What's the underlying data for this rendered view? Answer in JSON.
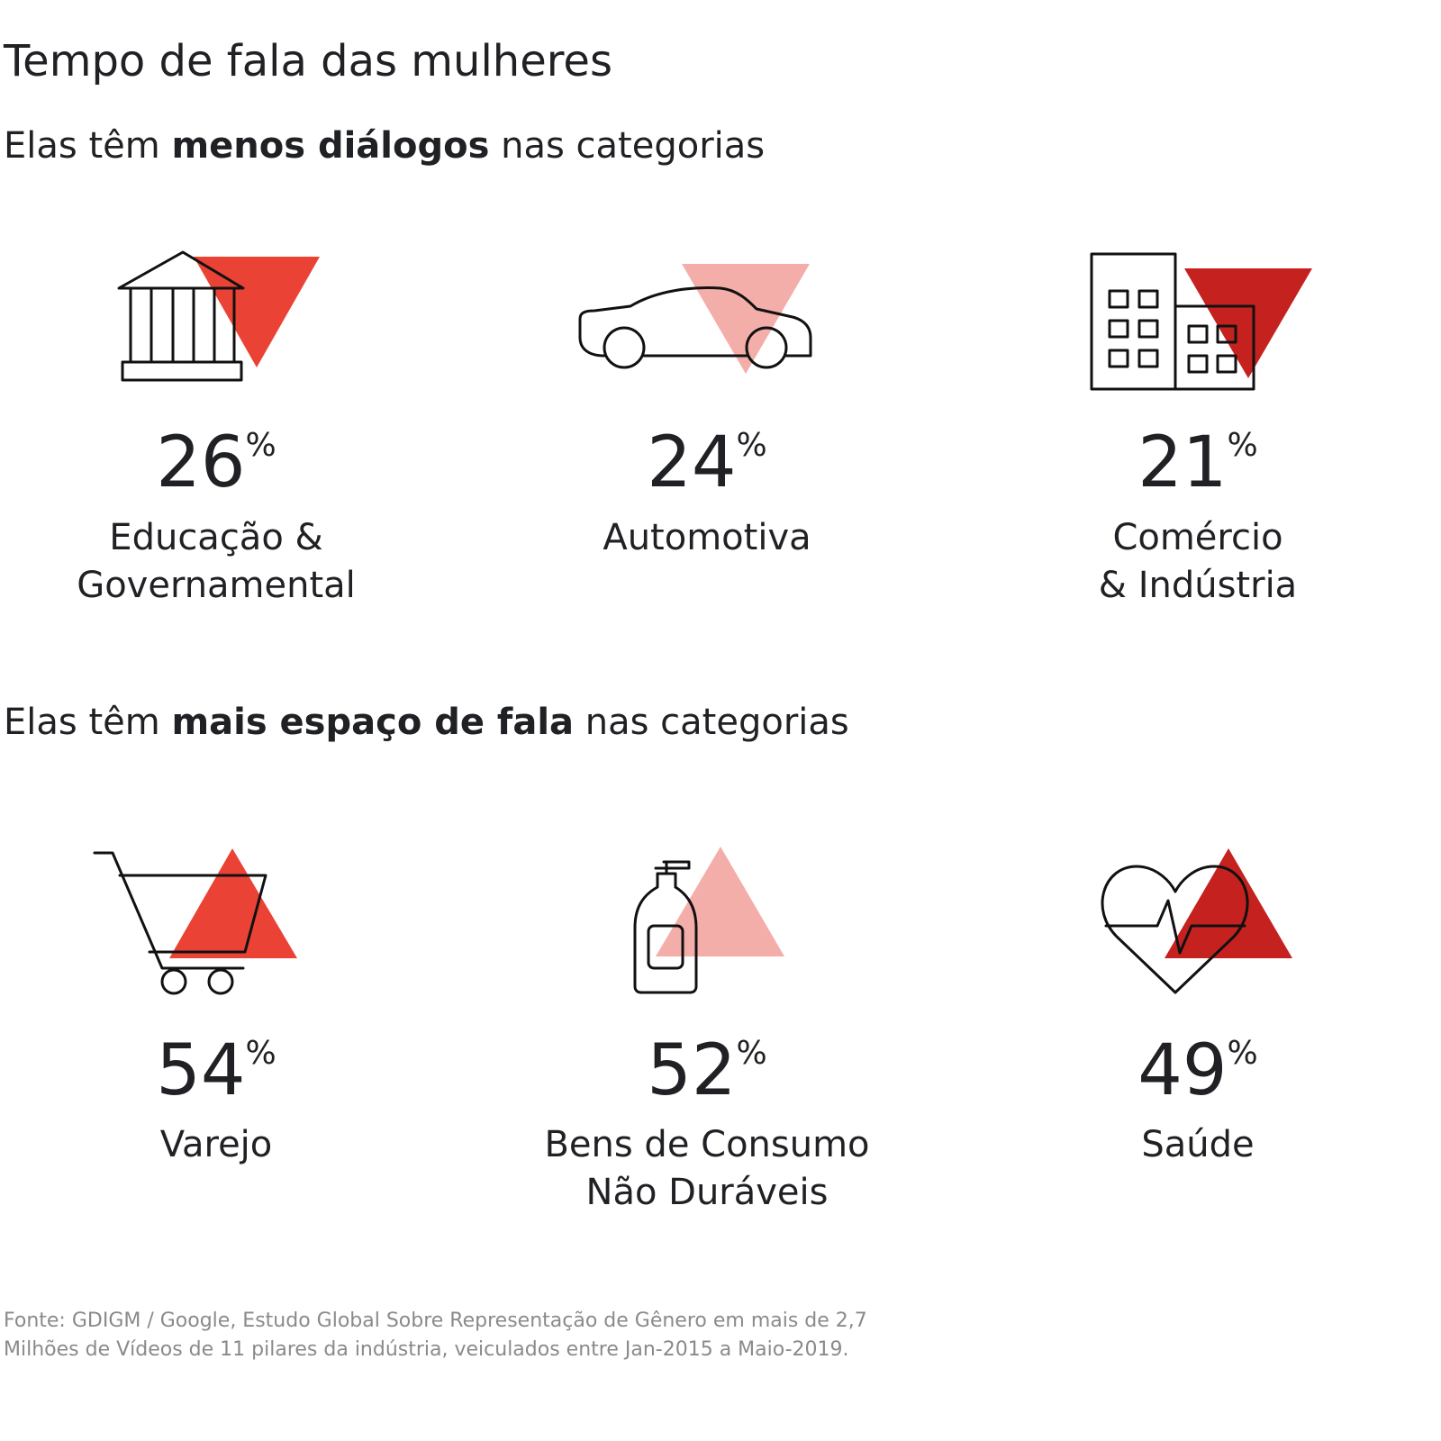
{
  "title": "Tempo de fala das mulheres",
  "sections": [
    {
      "heading": {
        "before": "Elas têm",
        "bold": "menos diálogos",
        "after": "nas categorias"
      },
      "items": [
        {
          "value": 26,
          "unit": "%",
          "label_lines": [
            "Educação &",
            "Governamental"
          ]
        },
        {
          "value": 24,
          "unit": "%",
          "label_lines": [
            "Automotiva"
          ]
        },
        {
          "value": 21,
          "unit": "%",
          "label_lines": [
            "Comércio",
            "& Indústria"
          ]
        }
      ]
    },
    {
      "heading": {
        "before": "Elas têm",
        "bold": "mais espaço de fala",
        "after": "nas categorias"
      },
      "items": [
        {
          "value": 54,
          "unit": "%",
          "label_lines": [
            "Varejo"
          ]
        },
        {
          "value": 52,
          "unit": "%",
          "label_lines": [
            "Bens de Consumo",
            "Não Duráveis"
          ]
        },
        {
          "value": 49,
          "unit": "%",
          "label_lines": [
            "Saúde"
          ]
        }
      ]
    }
  ],
  "footer": {
    "lines": [
      "Fonte: GDIGM / Google, Estudo Global Sobre Representação de Gênero em mais de 2,7",
      "Milhões de Vídeos de 11 pilares da indústria, veiculados entre Jan-2015 a Maio-2019."
    ]
  }
}
